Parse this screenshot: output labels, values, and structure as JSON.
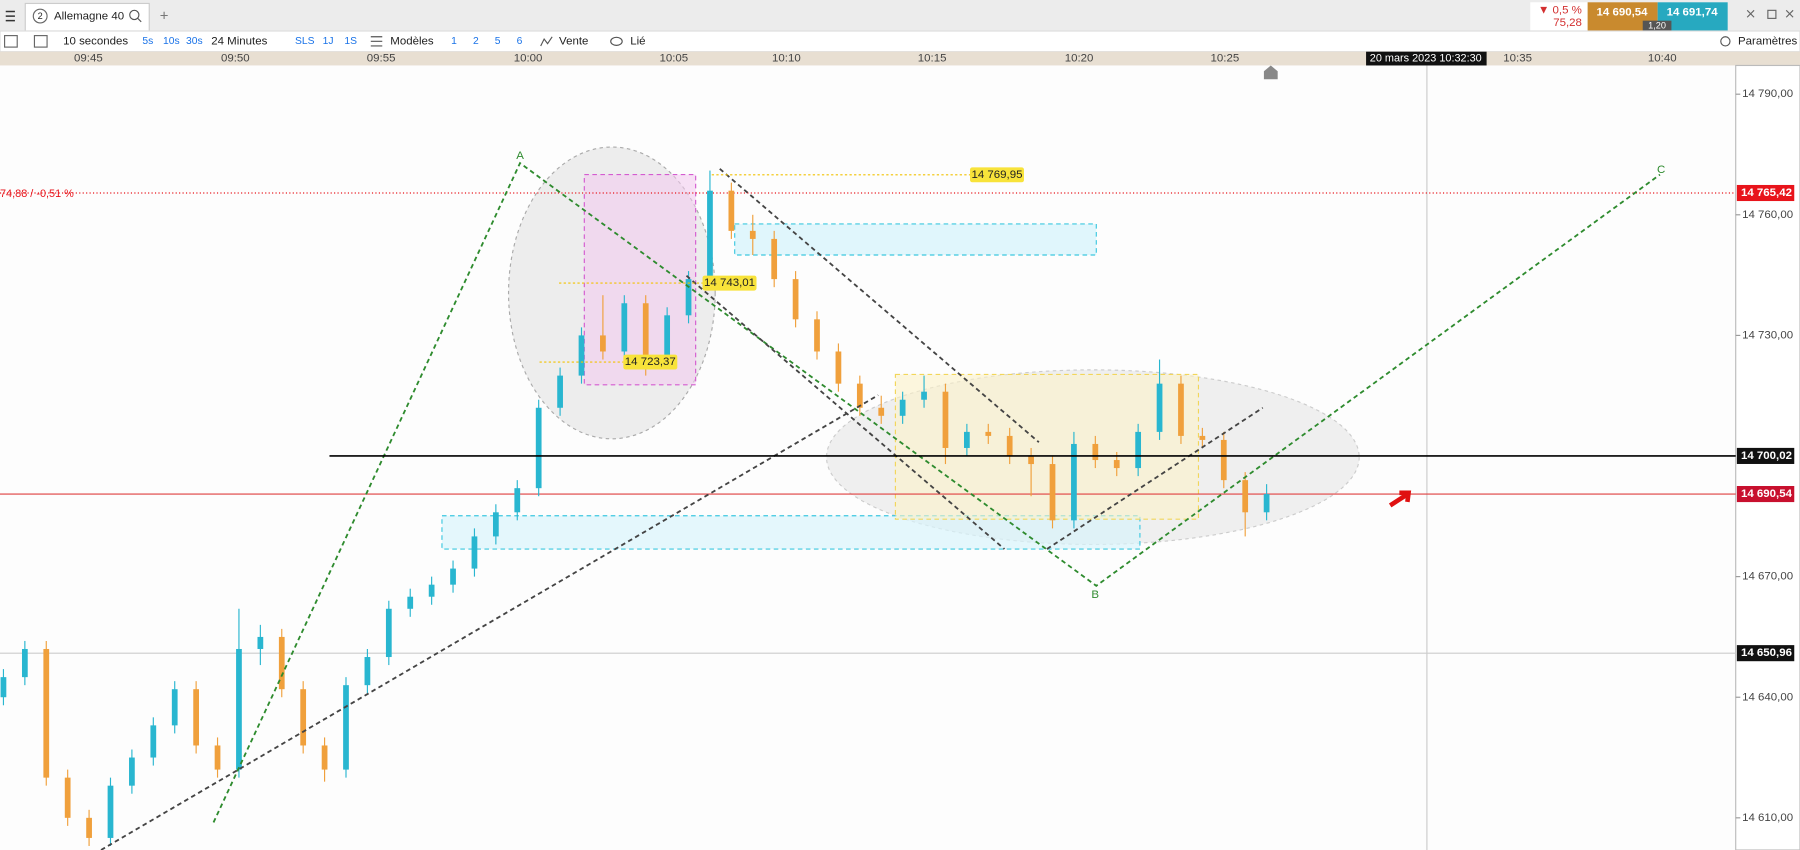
{
  "header": {
    "tab_number": "2",
    "tab_title": "Allemagne 40",
    "add": "+"
  },
  "toolbar": {
    "interval": "10 secondes",
    "quick": [
      "5s",
      "10s",
      "30s"
    ],
    "range": "24 Minutes",
    "periods": [
      "SLS",
      "1J",
      "1S"
    ],
    "models": "Modèles",
    "layouts": [
      "1",
      "2",
      "5",
      "6"
    ],
    "sell": "Vente",
    "link": "Lié",
    "settings": "Paramètres"
  },
  "quote": {
    "change_pct": "▼ 0,5 %",
    "change": "75,28",
    "bid": "14 690,54",
    "spread": "1,20",
    "ask": "14 691,74"
  },
  "chart": {
    "type": "candlestick",
    "up_color": "#29b6d0",
    "down_color": "#f0a03c",
    "time_labels": [
      "09:45",
      "09:50",
      "09:55",
      "10:00",
      "10:05",
      "10:10",
      "10:15",
      "10:20",
      "10:25",
      "10:35",
      "10:40"
    ],
    "cursor_date": "20 mars 2023 10:32:30",
    "yticks": [
      {
        "value": 14790,
        "label": "14 790,00"
      },
      {
        "value": 14760,
        "label": "14 760,00"
      },
      {
        "value": 14730,
        "label": "14 730,00"
      },
      {
        "value": 14670,
        "label": "14 670,00"
      },
      {
        "value": 14640,
        "label": "14 640,00"
      },
      {
        "value": 14610,
        "label": "14 610,00"
      }
    ],
    "badges": [
      {
        "value": 14765.42,
        "label": "14 765,42",
        "color": "#e8141b"
      },
      {
        "value": 14700.02,
        "label": "14 700,02",
        "color": "#111111"
      },
      {
        "value": 14690.54,
        "label": "14 690,54",
        "color": "#c8102e"
      },
      {
        "value": 14650.96,
        "label": "14 650,96",
        "color": "#111111"
      }
    ],
    "reference_label": "74,88 / -0,51 %",
    "annotations": [
      {
        "value": 14769.95,
        "label": "14 769,95"
      },
      {
        "value": 14743.01,
        "label": "14 743,01"
      },
      {
        "value": 14723.37,
        "label": "14 723,37"
      }
    ],
    "wave_labels": [
      "A",
      "B",
      "C"
    ],
    "candles": [
      [
        14640,
        14647,
        14638,
        14645
      ],
      [
        14645,
        14654,
        14643,
        14652
      ],
      [
        14652,
        14654,
        14618,
        14620
      ],
      [
        14620,
        14622,
        14608,
        14610
      ],
      [
        14610,
        14612,
        14603,
        14605
      ],
      [
        14605,
        14620,
        14603,
        14618
      ],
      [
        14618,
        14627,
        14616,
        14625
      ],
      [
        14625,
        14635,
        14623,
        14633
      ],
      [
        14633,
        14644,
        14631,
        14642
      ],
      [
        14642,
        14644,
        14626,
        14628
      ],
      [
        14628,
        14630,
        14620,
        14622
      ],
      [
        14622,
        14662,
        14620,
        14652
      ],
      [
        14652,
        14658,
        14648,
        14655
      ],
      [
        14655,
        14657,
        14640,
        14642
      ],
      [
        14642,
        14644,
        14626,
        14628
      ],
      [
        14628,
        14630,
        14619,
        14622
      ],
      [
        14622,
        14645,
        14620,
        14643
      ],
      [
        14643,
        14652,
        14641,
        14650
      ],
      [
        14650,
        14664,
        14648,
        14662
      ],
      [
        14662,
        14667,
        14660,
        14665
      ],
      [
        14665,
        14670,
        14663,
        14668
      ],
      [
        14668,
        14674,
        14666,
        14672
      ],
      [
        14672,
        14682,
        14670,
        14680
      ],
      [
        14680,
        14688,
        14678,
        14686
      ],
      [
        14686,
        14694,
        14684,
        14692
      ],
      [
        14692,
        14714,
        14690,
        14712
      ],
      [
        14712,
        14722,
        14710,
        14720
      ],
      [
        14720,
        14732,
        14718,
        14730
      ],
      [
        14730,
        14740,
        14724,
        14726
      ],
      [
        14726,
        14740,
        14724,
        14738
      ],
      [
        14738,
        14740,
        14720,
        14724
      ],
      [
        14724,
        14737,
        14722,
        14735
      ],
      [
        14735,
        14746,
        14733,
        14744
      ],
      [
        14744,
        14771,
        14742,
        14766
      ],
      [
        14766,
        14768,
        14754,
        14756
      ],
      [
        14756,
        14760,
        14750,
        14754
      ],
      [
        14754,
        14756,
        14742,
        14744
      ],
      [
        14744,
        14746,
        14732,
        14734
      ],
      [
        14734,
        14736,
        14724,
        14726
      ],
      [
        14726,
        14728,
        14716,
        14718
      ],
      [
        14718,
        14720,
        14710,
        14712
      ],
      [
        14712,
        14715,
        14708,
        14710
      ],
      [
        14710,
        14716,
        14708,
        14714
      ],
      [
        14714,
        14720,
        14712,
        14716
      ],
      [
        14716,
        14718,
        14698,
        14702
      ],
      [
        14702,
        14708,
        14700,
        14706
      ],
      [
        14706,
        14708,
        14703,
        14705
      ],
      [
        14705,
        14707,
        14698,
        14700
      ],
      [
        14700,
        14702,
        14690,
        14698
      ],
      [
        14698,
        14700,
        14682,
        14684
      ],
      [
        14684,
        14706,
        14682,
        14703
      ],
      [
        14703,
        14705,
        14697,
        14699
      ],
      [
        14699,
        14701,
        14695,
        14697
      ],
      [
        14697,
        14708,
        14695,
        14706
      ],
      [
        14706,
        14724,
        14704,
        14718
      ],
      [
        14718,
        14720,
        14703,
        14705
      ],
      [
        14705,
        14707,
        14702,
        14704
      ],
      [
        14704,
        14706,
        14692,
        14694
      ],
      [
        14694,
        14696,
        14680,
        14686
      ],
      [
        14686,
        14693,
        14684,
        14690.54
      ]
    ]
  }
}
